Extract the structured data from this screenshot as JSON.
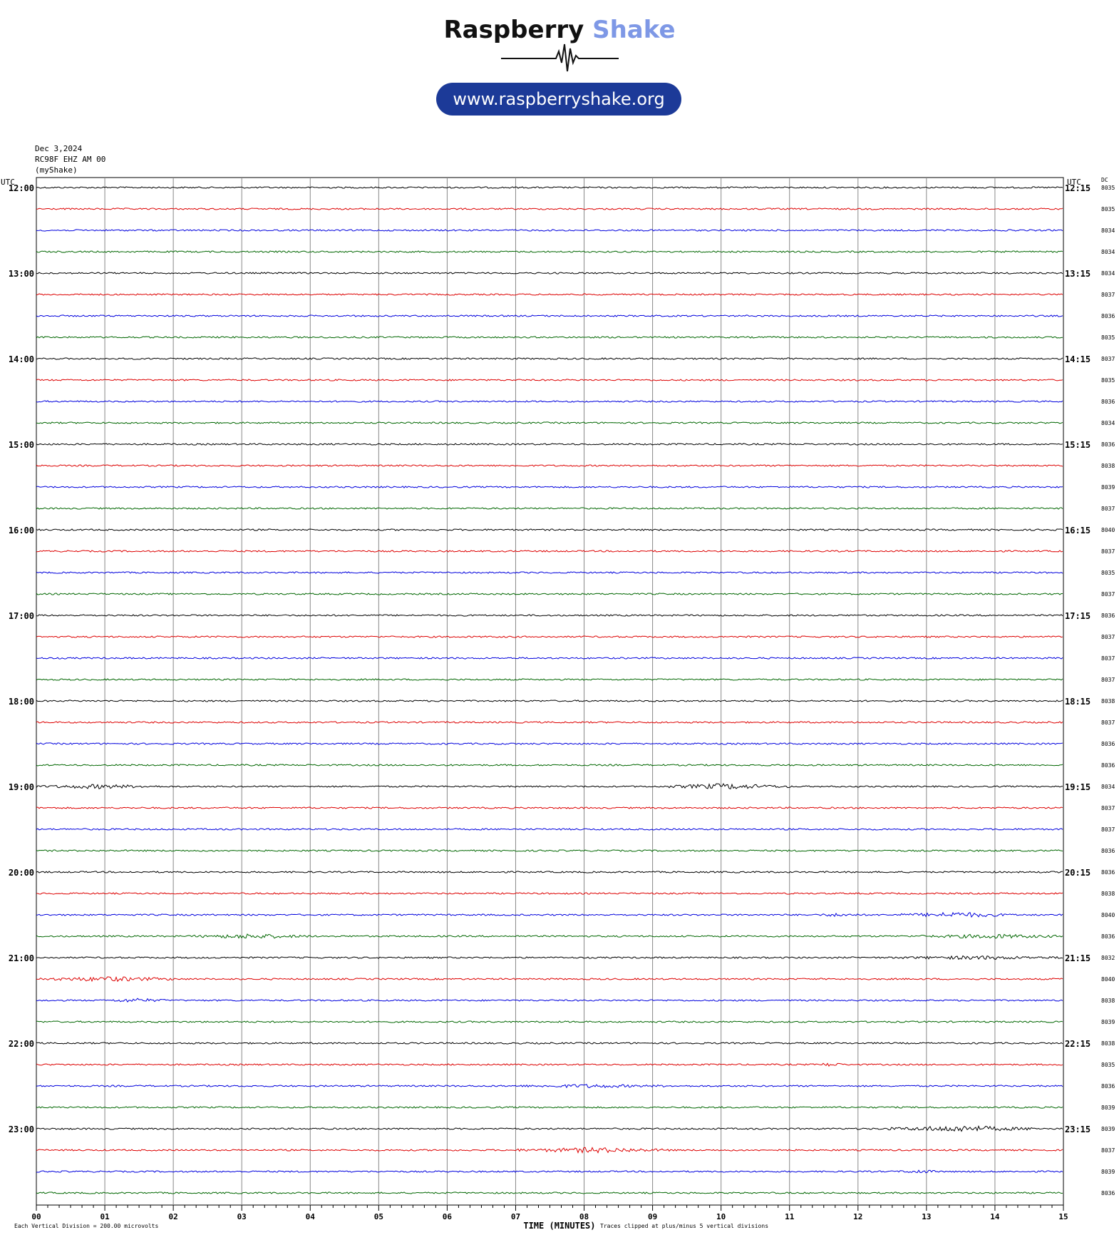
{
  "logo": {
    "word1": "Raspberry",
    "word2": "Shake",
    "url": "www.raspberryshake.org"
  },
  "header": {
    "date": "Dec 3,2024",
    "station": "RC98F EHZ AM 00",
    "network": "(myShake)"
  },
  "colors": {
    "trace_cycle": [
      "#000000",
      "#dd0000",
      "#0000dd",
      "#006600"
    ],
    "grid": "#888888",
    "pill": "#1c3a98",
    "accent": "#7e98e6"
  },
  "chart_data": {
    "type": "helicorder",
    "xlabel": "TIME (MINUTES)",
    "left_axis_label": "UTC",
    "right_axis_label": "UTC",
    "dc_label": "DC",
    "x_ticks": [
      "00",
      "01",
      "02",
      "03",
      "04",
      "05",
      "06",
      "07",
      "08",
      "09",
      "10",
      "11",
      "12",
      "13",
      "14",
      "15"
    ],
    "xlim": [
      0,
      15
    ],
    "left_hour_labels": [
      "12:00",
      "13:00",
      "14:00",
      "15:00",
      "16:00",
      "17:00",
      "18:00",
      "19:00",
      "20:00",
      "21:00",
      "22:00",
      "23:00"
    ],
    "right_hour_labels": [
      "12:15",
      "13:15",
      "14:15",
      "15:15",
      "16:15",
      "17:15",
      "18:15",
      "19:15",
      "20:15",
      "21:15",
      "22:15",
      "23:15"
    ],
    "rows_per_hour": 4,
    "dc_values": [
      "8035",
      "8035",
      "8034",
      "8034",
      "8034",
      "8037",
      "8036",
      "8035",
      "8037",
      "8035",
      "8036",
      "8034",
      "8036",
      "8038",
      "8039",
      "8037",
      "8040",
      "8037",
      "8035",
      "8037",
      "8036",
      "8037",
      "8037",
      "8037",
      "8038",
      "8037",
      "8036",
      "8036",
      "8034",
      "8037",
      "8037",
      "8036",
      "8036",
      "8038",
      "8040",
      "8036",
      "8032",
      "8040",
      "8038",
      "8039",
      "8038",
      "8035",
      "8036",
      "8039",
      "8039",
      "8037",
      "8039",
      "8036"
    ],
    "events": [
      {
        "row": 28,
        "start": 0.0,
        "end": 1.8,
        "amp": 2.2
      },
      {
        "row": 28,
        "start": 9.1,
        "end": 11.0,
        "amp": 3.2
      },
      {
        "row": 34,
        "start": 11.4,
        "end": 12.0,
        "amp": 1.6
      },
      {
        "row": 34,
        "start": 12.6,
        "end": 14.3,
        "amp": 3.0
      },
      {
        "row": 35,
        "start": 2.3,
        "end": 4.0,
        "amp": 2.6
      },
      {
        "row": 35,
        "start": 12.9,
        "end": 15.0,
        "amp": 2.2
      },
      {
        "row": 36,
        "start": 12.5,
        "end": 15.0,
        "amp": 1.8
      },
      {
        "row": 37,
        "start": 0.0,
        "end": 2.1,
        "amp": 2.6
      },
      {
        "row": 38,
        "start": 1.0,
        "end": 1.9,
        "amp": 2.0
      },
      {
        "row": 41,
        "start": 11.4,
        "end": 11.8,
        "amp": 2.0
      },
      {
        "row": 42,
        "start": 7.0,
        "end": 9.2,
        "amp": 1.6
      },
      {
        "row": 44,
        "start": 12.4,
        "end": 14.6,
        "amp": 3.6
      },
      {
        "row": 45,
        "start": 7.0,
        "end": 9.3,
        "amp": 3.0
      },
      {
        "row": 46,
        "start": 12.6,
        "end": 13.2,
        "amp": 1.6
      }
    ],
    "footer_left": "Each Vertical Division =  200.00 microvolts",
    "footer_right": "Traces clipped at plus/minus 5 vertical divisions"
  }
}
